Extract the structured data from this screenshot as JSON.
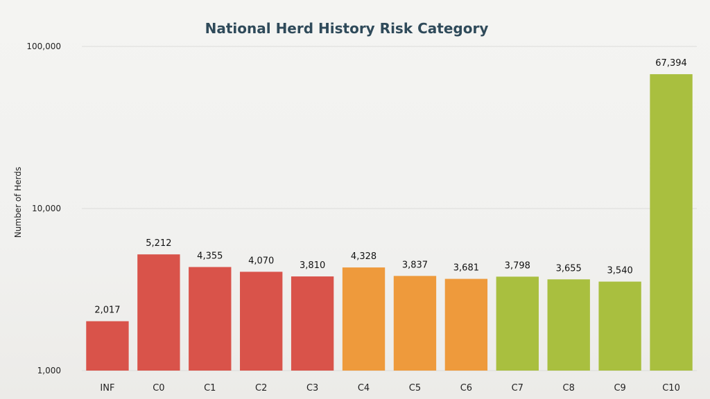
{
  "chart_data": {
    "type": "bar",
    "title": "National Herd History Risk Category",
    "xlabel": "",
    "ylabel": "Number of Herds",
    "yscale": "log",
    "ylim": [
      1000,
      100000
    ],
    "yticks": [
      {
        "value": 1000,
        "label": "1,000"
      },
      {
        "value": 10000,
        "label": "10,000"
      },
      {
        "value": 100000,
        "label": "100,000"
      }
    ],
    "grid": true,
    "legend": "none",
    "categories": [
      "INF",
      "C0",
      "C1",
      "C2",
      "C3",
      "C4",
      "C5",
      "C6",
      "C7",
      "C8",
      "C9",
      "C10"
    ],
    "values": [
      2017,
      5212,
      4355,
      4070,
      3810,
      4328,
      3837,
      3681,
      3798,
      3655,
      3540,
      67394
    ],
    "value_labels": [
      "2,017",
      "5,212",
      "4,355",
      "4,070",
      "3,810",
      "4,328",
      "3,837",
      "3,681",
      "3,798",
      "3,655",
      "3,540",
      "67,394"
    ],
    "bar_colors": [
      "#d9534a",
      "#d9534a",
      "#d9534a",
      "#d9534a",
      "#d9534a",
      "#ee9a3c",
      "#ee9a3c",
      "#ee9a3c",
      "#a9bf3f",
      "#a9bf3f",
      "#a9bf3f",
      "#a9bf3f"
    ],
    "grid_color": "#dcdcda",
    "title_color": "#2f4a5a"
  }
}
